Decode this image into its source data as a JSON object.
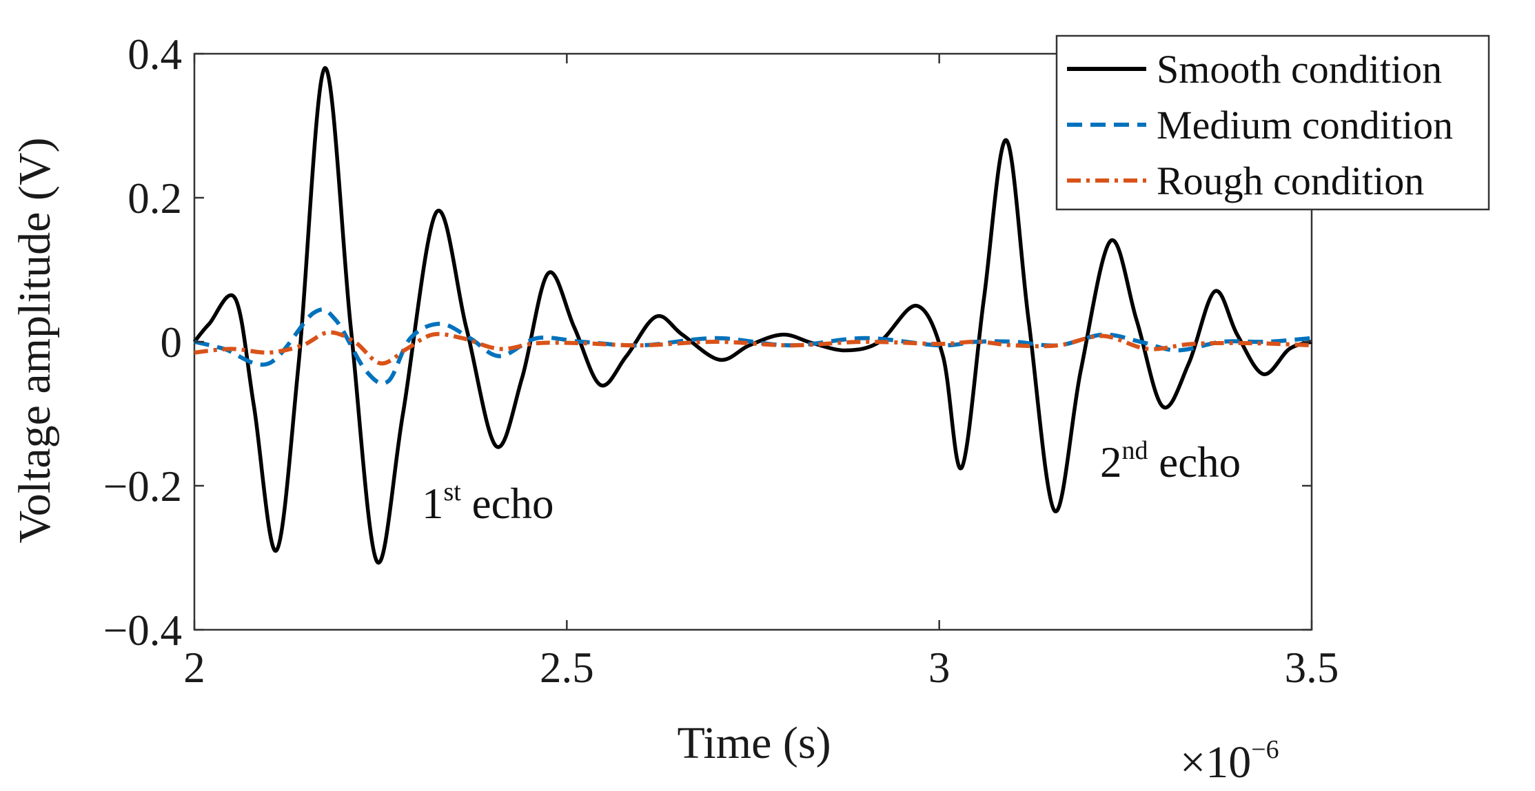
{
  "chart_data": {
    "type": "line",
    "xlabel": "Time (s)",
    "ylabel": "Voltage amplitude (V)",
    "x_multiplier": "×10",
    "x_multiplier_exp": "−6",
    "xlim": [
      2.0,
      3.5
    ],
    "ylim": [
      -0.4,
      0.4
    ],
    "x_ticks": [
      {
        "value": 2.0,
        "label": "2"
      },
      {
        "value": 2.5,
        "label": "2.5"
      },
      {
        "value": 3.0,
        "label": "3"
      },
      {
        "value": 3.5,
        "label": "3.5"
      }
    ],
    "y_ticks": [
      {
        "value": 0.4,
        "label": "0.4"
      },
      {
        "value": 0.2,
        "label": "0.2"
      },
      {
        "value": 0.0,
        "label": "0"
      },
      {
        "value": -0.2,
        "label": "−0.2"
      },
      {
        "value": -0.4,
        "label": "−0.4"
      }
    ],
    "grid": false,
    "legend_position": "top-right",
    "series": [
      {
        "name": "Smooth condition",
        "color": "#000000",
        "style": "solid",
        "x": [
          2.0,
          2.02,
          2.055,
          2.08,
          2.11,
          2.14,
          2.175,
          2.21,
          2.245,
          2.28,
          2.325,
          2.365,
          2.405,
          2.44,
          2.475,
          2.51,
          2.545,
          2.58,
          2.62,
          2.655,
          2.705,
          2.745,
          2.79,
          2.83,
          2.875,
          2.92,
          2.97,
          3.005,
          3.03,
          3.06,
          3.09,
          3.12,
          3.155,
          3.19,
          3.23,
          3.265,
          3.3,
          3.335,
          3.37,
          3.4,
          3.435,
          3.47,
          3.5
        ],
        "y": [
          0.0,
          0.025,
          0.06,
          -0.09,
          -0.29,
          -0.03,
          0.38,
          0.02,
          -0.305,
          -0.1,
          0.18,
          0.02,
          -0.145,
          -0.05,
          0.095,
          0.02,
          -0.06,
          -0.02,
          0.035,
          0.01,
          -0.025,
          -0.005,
          0.01,
          -0.002,
          -0.012,
          0.0,
          0.05,
          -0.02,
          -0.175,
          0.06,
          0.28,
          0.03,
          -0.235,
          -0.04,
          0.14,
          0.03,
          -0.09,
          -0.03,
          0.07,
          0.01,
          -0.045,
          -0.01,
          0.0
        ]
      },
      {
        "name": "Medium condition",
        "color": "#0072BD",
        "style": "dashed",
        "x": [
          2.0,
          2.04,
          2.1,
          2.16,
          2.19,
          2.23,
          2.26,
          2.29,
          2.33,
          2.37,
          2.41,
          2.46,
          2.52,
          2.6,
          2.7,
          2.8,
          2.9,
          3.0,
          3.05,
          3.1,
          3.16,
          3.22,
          3.27,
          3.32,
          3.38,
          3.44,
          3.5
        ],
        "y": [
          0.0,
          -0.01,
          -0.03,
          0.04,
          0.03,
          -0.04,
          -0.055,
          0.005,
          0.025,
          0.005,
          -0.02,
          0.005,
          0.0,
          -0.005,
          0.005,
          -0.005,
          0.005,
          -0.005,
          0.0,
          0.0,
          -0.005,
          0.01,
          0.0,
          -0.012,
          0.0,
          0.0,
          0.005
        ]
      },
      {
        "name": "Rough condition",
        "color": "#D95319",
        "style": "dashdot",
        "x": [
          2.0,
          2.05,
          2.1,
          2.145,
          2.18,
          2.215,
          2.25,
          2.285,
          2.32,
          2.36,
          2.41,
          2.46,
          2.52,
          2.6,
          2.7,
          2.8,
          2.9,
          3.0,
          3.05,
          3.1,
          3.16,
          3.22,
          3.28,
          3.34,
          3.42,
          3.5
        ],
        "y": [
          -0.015,
          -0.01,
          -0.015,
          -0.005,
          0.013,
          0.0,
          -0.03,
          -0.01,
          0.01,
          0.005,
          -0.01,
          -0.002,
          -0.002,
          -0.005,
          0.0,
          -0.005,
          0.0,
          -0.003,
          0.0,
          -0.005,
          -0.005,
          0.008,
          -0.01,
          -0.003,
          -0.002,
          -0.005
        ]
      }
    ],
    "annotations": [
      {
        "label_main": "1",
        "label_sup": "st",
        "label_rest": " echo"
      },
      {
        "label_main": "2",
        "label_sup": "nd",
        "label_rest": " echo"
      }
    ]
  }
}
